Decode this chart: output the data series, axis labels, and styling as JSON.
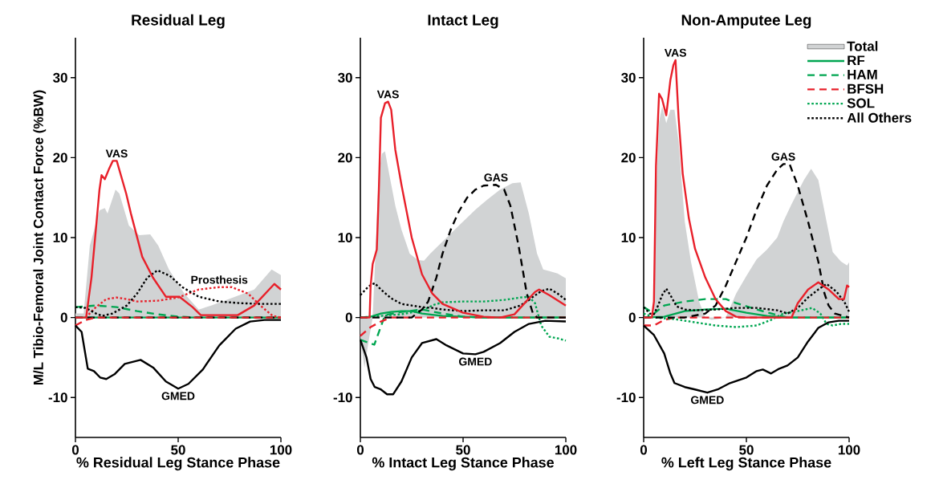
{
  "chart_data": [
    {
      "type": "line",
      "title": "Residual Leg",
      "xlabel": "% Residual Leg Stance Phase",
      "ylabel": "M/L Tibio-Femoral Joint Contact Force (%BW)",
      "xlim": [
        0,
        100
      ],
      "xticks": [
        0,
        50,
        100
      ],
      "ylim": [
        -15,
        35
      ],
      "yticks": [
        -10,
        0,
        10,
        20,
        30
      ],
      "legend": false,
      "series": [
        {
          "type": "area",
          "color": "#d1d3d4",
          "x": [
            0,
            4,
            7,
            11.7,
            14.3,
            15.6,
            19.5,
            21.4,
            26,
            31,
            36.4,
            40.3,
            45.5,
            53,
            60,
            66,
            76.6,
            87,
            95.5,
            100
          ],
          "values": [
            0.5,
            0.5,
            9,
            13.4,
            13.7,
            13,
            16,
            15.5,
            11.5,
            10.3,
            10.4,
            9,
            6,
            3,
            1,
            1.5,
            2.5,
            3.5,
            6,
            5.3
          ]
        },
        {
          "color": "#00a651",
          "line_style": "solid",
          "x": [
            0,
            100
          ],
          "values": [
            0,
            0
          ]
        },
        {
          "color": "#00a651",
          "line_style": "dashed",
          "x": [
            0,
            10,
            20,
            30,
            40,
            50,
            60,
            100
          ],
          "values": [
            1.3,
            1.5,
            1.3,
            0.8,
            0.4,
            0.1,
            0,
            0
          ]
        },
        {
          "color": "#000000",
          "line_style": "dashed",
          "x": [
            0,
            100
          ],
          "values": [
            0,
            0
          ]
        },
        {
          "color": "#e8202a",
          "line_style": "dashed",
          "x": [
            0,
            5,
            10,
            100
          ],
          "values": [
            -1,
            -0.3,
            0,
            0
          ]
        },
        {
          "color": "#e8202a",
          "line_style": "dotted",
          "x": [
            5,
            10,
            15,
            20,
            25,
            30,
            40,
            50,
            60,
            70,
            76,
            84,
            90,
            96,
            100
          ],
          "values": [
            0,
            1.3,
            2.3,
            2.5,
            2.3,
            2,
            2.1,
            2.5,
            3.5,
            3.8,
            3.8,
            3,
            1.5,
            0.2,
            0
          ]
        },
        {
          "color": "#000000",
          "line_style": "dotted",
          "x": [
            0,
            5,
            10,
            13,
            18,
            25,
            30,
            35,
            40,
            46,
            52,
            60,
            70,
            80,
            90,
            100
          ],
          "values": [
            1.3,
            1.2,
            0.5,
            0.2,
            0.5,
            1.5,
            3,
            5,
            5.9,
            5.2,
            3.8,
            2.6,
            2,
            1.8,
            1.7,
            1.7
          ]
        },
        {
          "color": "#000000",
          "line_style": "solid",
          "x": [
            0,
            3,
            6,
            9,
            12,
            15,
            19,
            24,
            31.7,
            38,
            44,
            50,
            55,
            62,
            70,
            78,
            85,
            92,
            100
          ],
          "values": [
            -1,
            -1.8,
            -6.4,
            -6.7,
            -7.5,
            -7.7,
            -7.1,
            -5.8,
            -5.3,
            -6.3,
            -8,
            -8.9,
            -8.3,
            -6.5,
            -3.5,
            -1.4,
            -0.5,
            -0.3,
            -0.3
          ]
        },
        {
          "color": "#e8202a",
          "line_style": "solid",
          "x": [
            0,
            5.2,
            7.8,
            11.7,
            12.7,
            14.3,
            16.2,
            18.2,
            20.1,
            24.7,
            27,
            32.5,
            37.7,
            44,
            50.6,
            57,
            61,
            79,
            87,
            96.8,
            100
          ],
          "values": [
            0,
            0,
            5,
            16,
            17.8,
            17.3,
            18.5,
            19.6,
            19.6,
            15.5,
            13,
            7.6,
            5,
            2.6,
            2.6,
            1.3,
            0.3,
            0.3,
            1.5,
            4.2,
            3.5
          ]
        }
      ],
      "annotations": [
        {
          "text": "VAS",
          "x": 20.1,
          "y": 19.6
        },
        {
          "text": "Prosthesis",
          "x": 70,
          "y": 3.8
        },
        {
          "text": "GMED",
          "x": 50,
          "y": -8.9
        }
      ]
    },
    {
      "type": "line",
      "title": "Intact Leg",
      "xlabel": "% Intact Leg Stance Phase",
      "xlim": [
        0,
        100
      ],
      "xticks": [
        0,
        50,
        100
      ],
      "ylim": [
        -15,
        35
      ],
      "yticks": [
        -10,
        0,
        10,
        20,
        30
      ],
      "legend": false,
      "series": [
        {
          "type": "area",
          "color": "#d1d3d4",
          "x": [
            0,
            2,
            4,
            6,
            8,
            9,
            10.5,
            12,
            14,
            17,
            20,
            24,
            28,
            31,
            34,
            38,
            44,
            50,
            56,
            62,
            68,
            74,
            78,
            82,
            86,
            89,
            92,
            96,
            100
          ],
          "values": [
            -2.5,
            -6.3,
            -3,
            0,
            12,
            18,
            20.5,
            20.8,
            18,
            14,
            11,
            8,
            7.2,
            7.1,
            8,
            9,
            10.5,
            12,
            13.5,
            14.8,
            16,
            16.8,
            16.9,
            13,
            8,
            6,
            5.8,
            5.5,
            4.9
          ]
        },
        {
          "color": "#00a651",
          "line_style": "solid",
          "x": [
            0,
            5,
            10,
            15,
            20,
            25,
            30,
            40,
            50,
            60,
            100
          ],
          "values": [
            0,
            0.1,
            0.5,
            0.7,
            0.8,
            0.8,
            0.5,
            0.2,
            0.1,
            0,
            0
          ]
        },
        {
          "color": "#00a651",
          "line_style": "dashed",
          "x": [
            0,
            6.8,
            12,
            20,
            30,
            40,
            50,
            60,
            100
          ],
          "values": [
            -2.8,
            -3.4,
            0.3,
            0.7,
            1,
            0.5,
            0.1,
            0,
            0
          ]
        },
        {
          "color": "#e8202a",
          "line_style": "dashed",
          "x": [
            0,
            5,
            10,
            15,
            100
          ],
          "values": [
            -2.3,
            -1.2,
            -0.5,
            0,
            0
          ]
        },
        {
          "color": "#00a651",
          "line_style": "dotted",
          "x": [
            0,
            10,
            20,
            30,
            36,
            40,
            50,
            60,
            70,
            78,
            82,
            85,
            88,
            92,
            96,
            100
          ],
          "values": [
            0,
            0.2,
            0.4,
            0.9,
            1.6,
            1.9,
            2,
            2,
            2.2,
            2.5,
            2.6,
            1.8,
            -1,
            -2.4,
            -2.6,
            -2.9
          ]
        },
        {
          "color": "#000000",
          "line_style": "dotted",
          "x": [
            0,
            4,
            7,
            10,
            15,
            20,
            25,
            30,
            35,
            40,
            50,
            60,
            70,
            78,
            83,
            88,
            92,
            96,
            100
          ],
          "values": [
            2.8,
            3.9,
            4.3,
            3.5,
            2.4,
            1.7,
            1.5,
            1.3,
            1.2,
            1,
            0.8,
            0.9,
            0.9,
            1.5,
            2.4,
            3.3,
            3.6,
            3,
            2.2
          ]
        },
        {
          "color": "#000000",
          "line_style": "dashed",
          "x": [
            0,
            25,
            30,
            33,
            37,
            40,
            44,
            48,
            52,
            56,
            60,
            66,
            70,
            73,
            77,
            81,
            84,
            86,
            100
          ],
          "values": [
            0,
            0,
            1,
            2,
            5,
            8,
            11,
            13.3,
            15,
            16,
            16.5,
            16.6,
            16,
            14,
            9,
            3,
            0.5,
            0,
            0
          ]
        },
        {
          "color": "#000000",
          "line_style": "solid",
          "x": [
            0,
            3,
            5,
            7,
            10,
            13,
            16,
            20,
            25,
            30,
            37,
            42,
            50,
            56,
            60,
            68,
            75,
            82,
            90,
            100
          ],
          "values": [
            -2.8,
            -5,
            -7.7,
            -8.7,
            -9,
            -9.6,
            -9.6,
            -8,
            -5,
            -3.2,
            -2.7,
            -3.5,
            -4.5,
            -4.6,
            -4.3,
            -3.2,
            -1.8,
            -0.8,
            -0.4,
            -0.5
          ]
        },
        {
          "color": "#e8202a",
          "line_style": "solid",
          "x": [
            0,
            4.5,
            5,
            6,
            8,
            9,
            10,
            12,
            13.5,
            15,
            17,
            20,
            25,
            30,
            35,
            40,
            50,
            60,
            68,
            75,
            80,
            85,
            87,
            92,
            100
          ],
          "values": [
            0,
            0,
            4,
            6.7,
            8.5,
            16,
            25,
            26.8,
            27,
            26,
            21,
            16.6,
            10,
            5.4,
            3,
            1.7,
            0.6,
            0.1,
            0,
            0.4,
            1.8,
            3.2,
            3.5,
            2.8,
            1.5
          ]
        }
      ],
      "annotations": [
        {
          "text": "VAS",
          "x": 13.5,
          "y": 27
        },
        {
          "text": "GAS",
          "x": 66,
          "y": 16.6
        },
        {
          "text": "GMED",
          "x": 56,
          "y": -4.6
        }
      ]
    },
    {
      "type": "line",
      "title": "Non-Amputee Leg",
      "xlabel": "% Left Leg Stance Phase",
      "xlim": [
        0,
        100
      ],
      "xticks": [
        0,
        50,
        100
      ],
      "ylim": [
        -15,
        35
      ],
      "yticks": [
        -10,
        0,
        10,
        20,
        30
      ],
      "legend": "top right",
      "series": [
        {
          "type": "area",
          "name": "Total",
          "color": "#d1d3d4",
          "x": [
            0,
            5,
            6,
            7.5,
            9,
            11,
            13,
            15,
            17,
            20,
            23,
            27,
            30,
            33,
            36,
            40,
            45,
            50,
            55,
            60,
            65,
            68,
            72,
            78,
            81.5,
            85,
            89,
            92,
            96,
            99,
            100
          ],
          "values": [
            0,
            0,
            15,
            24.5,
            26.4,
            24.3,
            26,
            26,
            22,
            12,
            7,
            2,
            0,
            -0.3,
            -0.2,
            0,
            3,
            5.2,
            7.3,
            8.5,
            10,
            12,
            14.2,
            17.2,
            18.6,
            17.2,
            12,
            8.2,
            7,
            6.5,
            6.9
          ]
        },
        {
          "name": "RF",
          "color": "#00a651",
          "line_style": "solid",
          "x": [
            0,
            10,
            20,
            30,
            40,
            50,
            60,
            70,
            100
          ],
          "values": [
            0,
            0.1,
            0.8,
            1,
            1.1,
            0.6,
            0.2,
            0,
            0
          ]
        },
        {
          "name": "HAM",
          "color": "#00a651",
          "line_style": "dashed",
          "x": [
            0,
            5,
            10,
            20,
            30,
            40,
            45,
            55,
            65,
            70,
            100
          ],
          "values": [
            1.3,
            0.5,
            1.5,
            2,
            2.3,
            2.3,
            1.8,
            1,
            0.3,
            0,
            0
          ]
        },
        {
          "name": "BFSH",
          "color": "#e8202a",
          "line_style": "dashed",
          "x": [
            0,
            5,
            10,
            15,
            100
          ],
          "values": [
            -1,
            -1,
            -0.3,
            0,
            0
          ]
        },
        {
          "name": "SOL",
          "color": "#00a651",
          "line_style": "dotted",
          "x": [
            0,
            5,
            15,
            25,
            35,
            45,
            55,
            62,
            68,
            75,
            82,
            86,
            89,
            92,
            96,
            100
          ],
          "values": [
            0.5,
            0,
            -0.2,
            -0.6,
            -1,
            -1.2,
            -1,
            -0.3,
            0.5,
            0.8,
            1.2,
            0.5,
            -0.8,
            -1,
            -0.8,
            -0.8
          ]
        },
        {
          "name": "All Others",
          "color": "#000000",
          "line_style": "dotted",
          "x": [
            0,
            3,
            5,
            7,
            9,
            11,
            13,
            16,
            20,
            25,
            35,
            45,
            55,
            65,
            70,
            75,
            80,
            85,
            89,
            94,
            98,
            100
          ],
          "values": [
            1.3,
            0.5,
            0.4,
            1.5,
            2.8,
            3.6,
            2.8,
            1.4,
            1,
            0.9,
            1,
            1.2,
            1.2,
            0.9,
            0.5,
            1.2,
            2.5,
            3.5,
            4.2,
            3.2,
            1.8,
            0.7
          ]
        },
        {
          "color": "#000000",
          "line_style": "dashed",
          "x": [
            0,
            20,
            30,
            35,
            40,
            45,
            50,
            55,
            60,
            65,
            68,
            71,
            75,
            80,
            85,
            88,
            90,
            93,
            100
          ],
          "values": [
            0,
            0,
            0.5,
            1.5,
            4,
            7,
            10,
            13.5,
            16.5,
            18.5,
            19.2,
            19.2,
            16.5,
            12,
            7,
            3,
            1.5,
            0.5,
            0
          ]
        },
        {
          "color": "#000000",
          "line_style": "solid",
          "x": [
            0,
            5,
            10,
            13,
            15,
            20,
            25,
            31,
            36,
            42,
            50,
            55,
            58,
            62,
            66,
            70,
            75,
            80,
            85,
            90,
            95,
            100
          ],
          "values": [
            -1,
            -2.2,
            -4.5,
            -7,
            -8.2,
            -8.7,
            -9,
            -9.4,
            -9,
            -8.2,
            -7.5,
            -6.7,
            -6.5,
            -7,
            -6.4,
            -6,
            -5,
            -3,
            -1.3,
            -0.6,
            -0.4,
            -0.4
          ]
        },
        {
          "color": "#e8202a",
          "line_style": "solid",
          "x": [
            0,
            4,
            5,
            6,
            7.5,
            9,
            11,
            13,
            14.5,
            15.5,
            17,
            19,
            22,
            25,
            30,
            35,
            40,
            45,
            50,
            72,
            75,
            80,
            85,
            90,
            95,
            97.5,
            99,
            100
          ],
          "values": [
            0,
            0,
            2,
            19,
            28,
            27.3,
            25.3,
            29.7,
            31.6,
            32.2,
            25,
            18,
            12.4,
            8.6,
            5,
            2.3,
            0.8,
            0.1,
            0,
            0,
            1.8,
            3.5,
            4.4,
            3.5,
            2.3,
            2.3,
            4,
            3.8
          ]
        }
      ],
      "annotations": [
        {
          "text": "VAS",
          "x": 15.5,
          "y": 32.2
        },
        {
          "text": "GAS",
          "x": 68,
          "y": 19.2
        },
        {
          "text": "GMED",
          "x": 31,
          "y": -9.4
        }
      ]
    }
  ]
}
